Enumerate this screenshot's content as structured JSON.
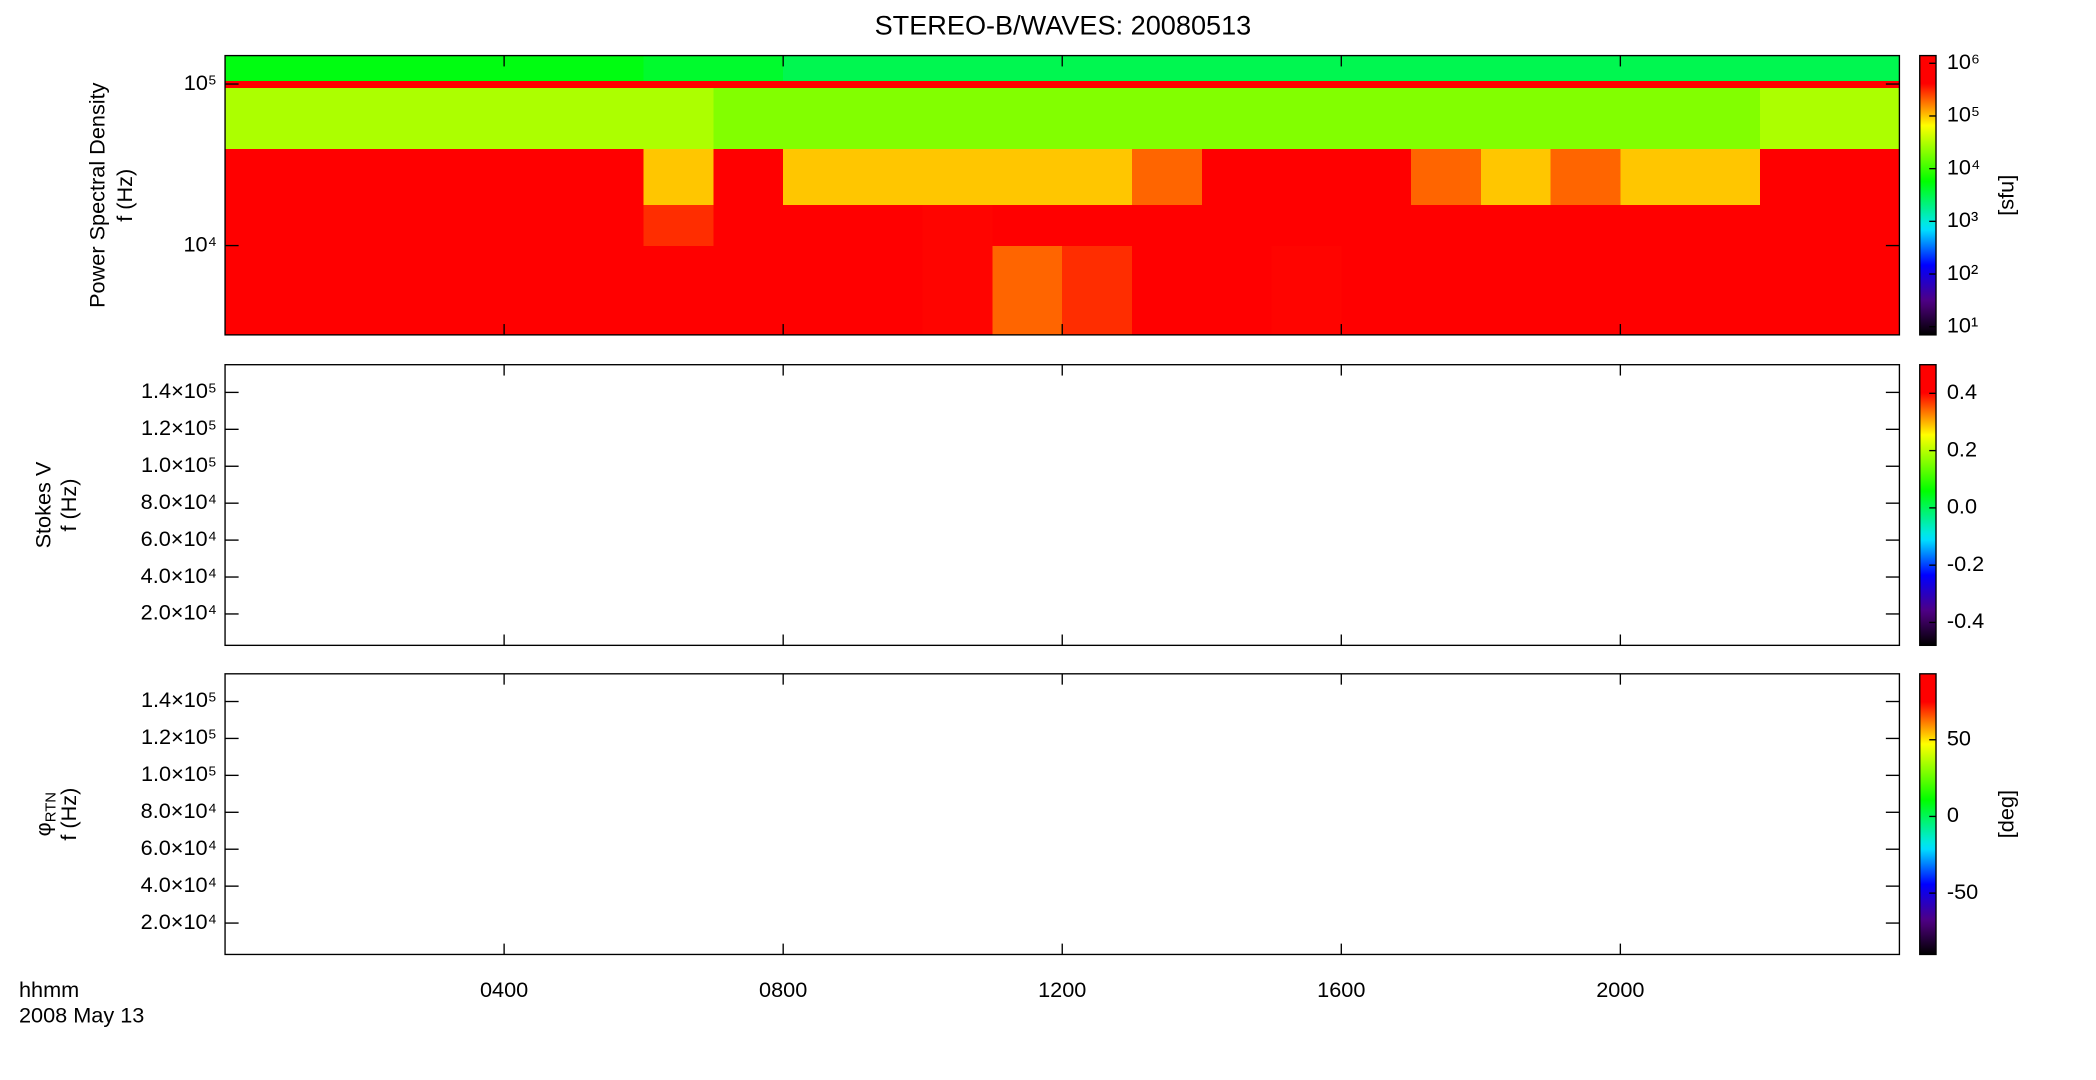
{
  "chart_data": {
    "type": "heatmap",
    "title": "STEREO-B/WAVES: 20080513",
    "xlim": [
      0,
      24
    ],
    "xticks": [
      {
        "value": 4,
        "label": "0400"
      },
      {
        "value": 8,
        "label": "0800"
      },
      {
        "value": 12,
        "label": "1200"
      },
      {
        "value": 16,
        "label": "1600"
      },
      {
        "value": 20,
        "label": "2000"
      }
    ],
    "x_caption": [
      "hhmm",
      "2008 May 13"
    ],
    "panels": [
      {
        "ylabel": [
          "Power Spectral Density",
          "f (Hz)"
        ],
        "ylog": true,
        "ylim": [
          2800,
          150000
        ],
        "yticks": [
          {
            "value": 10000,
            "label": "10⁴"
          },
          {
            "value": 100000,
            "label": "10⁵"
          }
        ],
        "x_bins": [
          0,
          1,
          2,
          3,
          4,
          5,
          6,
          7,
          8,
          9,
          10,
          11,
          12,
          13,
          14,
          15,
          16,
          17,
          18,
          19,
          20,
          21,
          22,
          23,
          24
        ],
        "y_bins": [
          2800,
          10000,
          18000,
          40000,
          95000,
          105000,
          150000
        ],
        "z": [
          [
            1000000,
            1000000,
            1000000,
            1000000,
            1000000,
            1000000,
            500000,
            500000,
            500000,
            500000,
            400000,
            200000,
            300000,
            500000,
            500000,
            400000,
            500000,
            500000,
            500000,
            500000,
            500000,
            500000,
            600000,
            600000
          ],
          [
            1000000,
            1000000,
            1000000,
            1000000,
            1000000,
            1000000,
            300000,
            1000000,
            1000000,
            1000000,
            400000,
            800000,
            600000,
            1000000,
            1000000,
            1000000,
            1000000,
            1000000,
            1000000,
            800000,
            1000000,
            1000000,
            1000000,
            1000000
          ],
          [
            1000000,
            1000000,
            1000000,
            1000000,
            1000000,
            1000000,
            100000,
            1000000,
            100000,
            100000,
            100000,
            100000,
            100000,
            200000,
            1000000,
            1000000,
            1000000,
            200000,
            100000,
            200000,
            100000,
            100000,
            1000000,
            1000000
          ],
          [
            30000,
            30000,
            30000,
            30000,
            30000,
            30000,
            30000,
            20000,
            20000,
            20000,
            20000,
            20000,
            20000,
            20000,
            20000,
            20000,
            20000,
            20000,
            20000,
            20000,
            20000,
            20000,
            30000,
            30000
          ],
          [
            800000,
            800000,
            800000,
            800000,
            800000,
            800000,
            800000,
            800000,
            800000,
            800000,
            800000,
            800000,
            800000,
            800000,
            800000,
            800000,
            800000,
            800000,
            800000,
            800000,
            800000,
            800000,
            800000,
            800000
          ],
          [
            5000,
            5000,
            5000,
            5000,
            5000,
            5000,
            4000,
            4000,
            3000,
            3000,
            3000,
            3000,
            3000,
            3000,
            3000,
            3000,
            3000,
            3000,
            3000,
            3000,
            3000,
            3000,
            3000,
            3000
          ]
        ],
        "colorbar": {
          "label": "[sfu]",
          "log": true,
          "lim": [
            7,
            1400000
          ],
          "ticks": [
            {
              "value": 10,
              "label": "10¹"
            },
            {
              "value": 100,
              "label": "10²"
            },
            {
              "value": 1000,
              "label": "10³"
            },
            {
              "value": 10000,
              "label": "10⁴"
            },
            {
              "value": 100000,
              "label": "10⁵"
            },
            {
              "value": 1000000,
              "label": "10⁶"
            }
          ]
        }
      },
      {
        "ylabel": [
          "Stokes V",
          "f (Hz)"
        ],
        "ylog": false,
        "ylim": [
          3000,
          155000
        ],
        "yticks": [
          {
            "value": 20000,
            "label": "2.0×10⁴"
          },
          {
            "value": 40000,
            "label": "4.0×10⁴"
          },
          {
            "value": 60000,
            "label": "6.0×10⁴"
          },
          {
            "value": 80000,
            "label": "8.0×10⁴"
          },
          {
            "value": 100000,
            "label": "1.0×10⁵"
          },
          {
            "value": 120000,
            "label": "1.2×10⁵"
          },
          {
            "value": 140000,
            "label": "1.4×10⁵"
          }
        ],
        "colorbar": {
          "log": false,
          "lim": [
            -0.48,
            0.5
          ],
          "ticks": [
            -0.4,
            -0.2,
            {
              "value": 0,
              "label": "0.0"
            },
            0.2,
            0.4
          ]
        }
      },
      {
        "ylabel": [
          "φ",
          "f (Hz)"
        ],
        "ylabel_subscript": "RTN",
        "ylog": false,
        "ylim": [
          3000,
          155000
        ],
        "yticks": [
          {
            "value": 20000,
            "label": "2.0×10⁴"
          },
          {
            "value": 40000,
            "label": "4.0×10⁴"
          },
          {
            "value": 60000,
            "label": "6.0×10⁴"
          },
          {
            "value": 80000,
            "label": "8.0×10⁴"
          },
          {
            "value": 100000,
            "label": "1.0×10⁵"
          },
          {
            "value": 120000,
            "label": "1.2×10⁵"
          },
          {
            "value": 140000,
            "label": "1.4×10⁵"
          }
        ],
        "colorbar": {
          "label": "[deg]",
          "log": false,
          "lim": [
            -90,
            93
          ],
          "ticks": [
            -50,
            0,
            50
          ]
        }
      }
    ]
  }
}
